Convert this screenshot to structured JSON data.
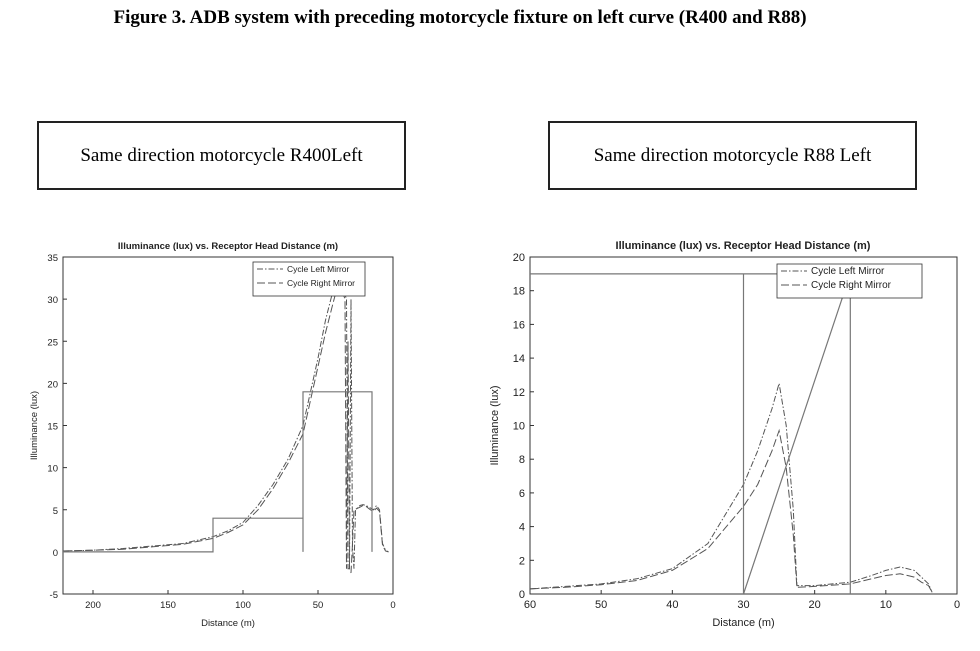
{
  "figure_title": "Figure 3. ADB system with preceding motorcycle fixture on left curve (R400 and R88)",
  "panel_labels": [
    "Same direction motorcycle R400Left",
    "Same direction motorcycle R88 Left"
  ],
  "colors": {
    "line": "#555555",
    "fixture": "#777777"
  },
  "chart_data": [
    {
      "type": "line",
      "title": "Illuminance (lux) vs. Receptor Head Distance (m)",
      "xlabel": "Distance (m)",
      "ylabel": "Illuminance (lux)",
      "xlim": [
        220,
        0
      ],
      "ylim": [
        -5,
        35
      ],
      "xticks": [
        "200",
        "150",
        "100",
        "50",
        "0"
      ],
      "yticks": [
        "-5",
        "0",
        "5",
        "10",
        "15",
        "20",
        "25",
        "30",
        "35"
      ],
      "legend_position": "top-right",
      "grid": false,
      "series": [
        {
          "name": "Cycle Left Mirror",
          "x": [
            220,
            200,
            180,
            160,
            140,
            120,
            110,
            100,
            90,
            80,
            70,
            60,
            55,
            50,
            45,
            40,
            36,
            33,
            31,
            30,
            29,
            28,
            27,
            26,
            25,
            22,
            20,
            18,
            15,
            13,
            11,
            9,
            7,
            5,
            3
          ],
          "y": [
            0.1,
            0.2,
            0.4,
            0.7,
            1.0,
            1.8,
            2.5,
            3.5,
            5.5,
            8.0,
            11.0,
            15.0,
            19.0,
            23.0,
            27.5,
            31.0,
            31.5,
            31.0,
            30.0,
            -2.0,
            -2.0,
            30.0,
            0.5,
            -2.0,
            5.0,
            5.5,
            5.6,
            5.5,
            5.2,
            5.0,
            5.5,
            5.0,
            1.0,
            0.2,
            0.0
          ]
        },
        {
          "name": "Cycle Right Mirror",
          "x": [
            220,
            200,
            180,
            160,
            140,
            120,
            110,
            100,
            90,
            80,
            70,
            60,
            55,
            50,
            45,
            40,
            37,
            34,
            32,
            31,
            30,
            29,
            28,
            27,
            26,
            22,
            20,
            18,
            15,
            13,
            11,
            9,
            7,
            5,
            3
          ],
          "y": [
            0.1,
            0.2,
            0.3,
            0.6,
            0.9,
            1.6,
            2.3,
            3.2,
            5.0,
            7.5,
            10.5,
            14.0,
            18.0,
            22.0,
            26.0,
            29.5,
            31.5,
            31.0,
            30.0,
            -2.0,
            25.0,
            -2.0,
            -2.5,
            1.0,
            5.0,
            5.3,
            5.5,
            5.4,
            5.0,
            4.8,
            5.2,
            4.8,
            0.8,
            0.1,
            0.0
          ]
        },
        {
          "name": "",
          "x": [
            220,
            120,
            120,
            60,
            60,
            60,
            14,
            14
          ],
          "y": [
            0,
            0,
            4,
            4,
            0,
            19,
            19,
            0
          ]
        }
      ]
    },
    {
      "type": "line",
      "title": "Illuminance (lux) vs. Receptor Head Distance (m)",
      "xlabel": "Distance (m)",
      "ylabel": "Illuminance (lux)",
      "xlim": [
        60,
        0
      ],
      "ylim": [
        0,
        20
      ],
      "xticks": [
        "60",
        "50",
        "40",
        "30",
        "20",
        "10",
        "0"
      ],
      "yticks": [
        "0",
        "2",
        "4",
        "6",
        "8",
        "10",
        "12",
        "14",
        "16",
        "18",
        "20"
      ],
      "legend_position": "top-right",
      "grid": false,
      "series": [
        {
          "name": "Cycle Left Mirror",
          "x": [
            60,
            55,
            50,
            45,
            40,
            35,
            30,
            28,
            26,
            25,
            24,
            23,
            22.5,
            20,
            15,
            12,
            10,
            8,
            6,
            5,
            4,
            3.5
          ],
          "y": [
            0.3,
            0.45,
            0.6,
            0.9,
            1.5,
            3.0,
            6.5,
            8.5,
            11.0,
            12.5,
            10.0,
            5.0,
            0.5,
            0.5,
            0.7,
            1.1,
            1.4,
            1.6,
            1.4,
            1.0,
            0.6,
            0.1
          ]
        },
        {
          "name": "Cycle Right Mirror",
          "x": [
            60,
            55,
            50,
            45,
            40,
            35,
            30,
            28,
            26,
            25,
            24,
            23,
            22.5,
            20,
            15,
            12,
            10,
            8,
            6,
            5,
            4,
            3.5
          ],
          "y": [
            0.3,
            0.4,
            0.55,
            0.8,
            1.4,
            2.7,
            5.2,
            6.5,
            8.5,
            9.7,
            7.5,
            3.5,
            0.4,
            0.45,
            0.6,
            0.9,
            1.1,
            1.2,
            1.0,
            0.7,
            0.5,
            0.1
          ]
        },
        {
          "name": "",
          "x": [
            60,
            22,
            30,
            30,
            15,
            15
          ],
          "y": [
            19,
            19,
            19,
            0,
            19,
            0
          ]
        }
      ]
    }
  ]
}
